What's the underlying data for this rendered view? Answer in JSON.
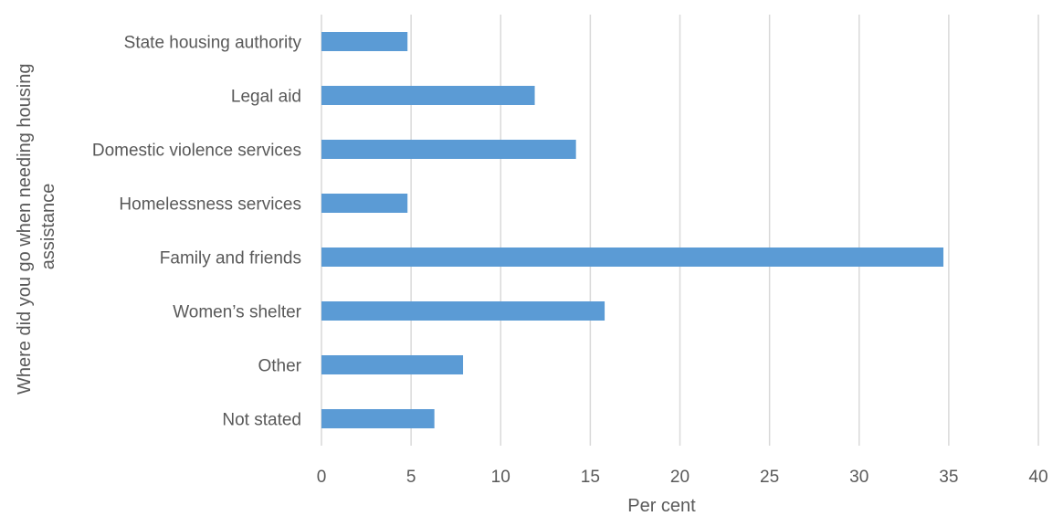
{
  "chart_data": {
    "type": "bar",
    "orientation": "horizontal",
    "categories": [
      "State housing authority",
      "Legal aid",
      "Domestic violence services",
      "Homelessness services",
      "Family and friends",
      "Women’s shelter",
      "Other",
      "Not stated"
    ],
    "values": [
      4.8,
      11.9,
      14.2,
      4.8,
      34.7,
      15.8,
      7.9,
      6.3
    ],
    "xlabel": "Per cent",
    "ylabel_lines": [
      "Where did you go when needing housing",
      "assistance"
    ],
    "xlim": [
      0,
      40
    ],
    "xticks": [
      0,
      5,
      10,
      15,
      20,
      25,
      30,
      35,
      40
    ],
    "grid": "vertical",
    "legend": "none",
    "bar_color": "#5b9bd5"
  }
}
